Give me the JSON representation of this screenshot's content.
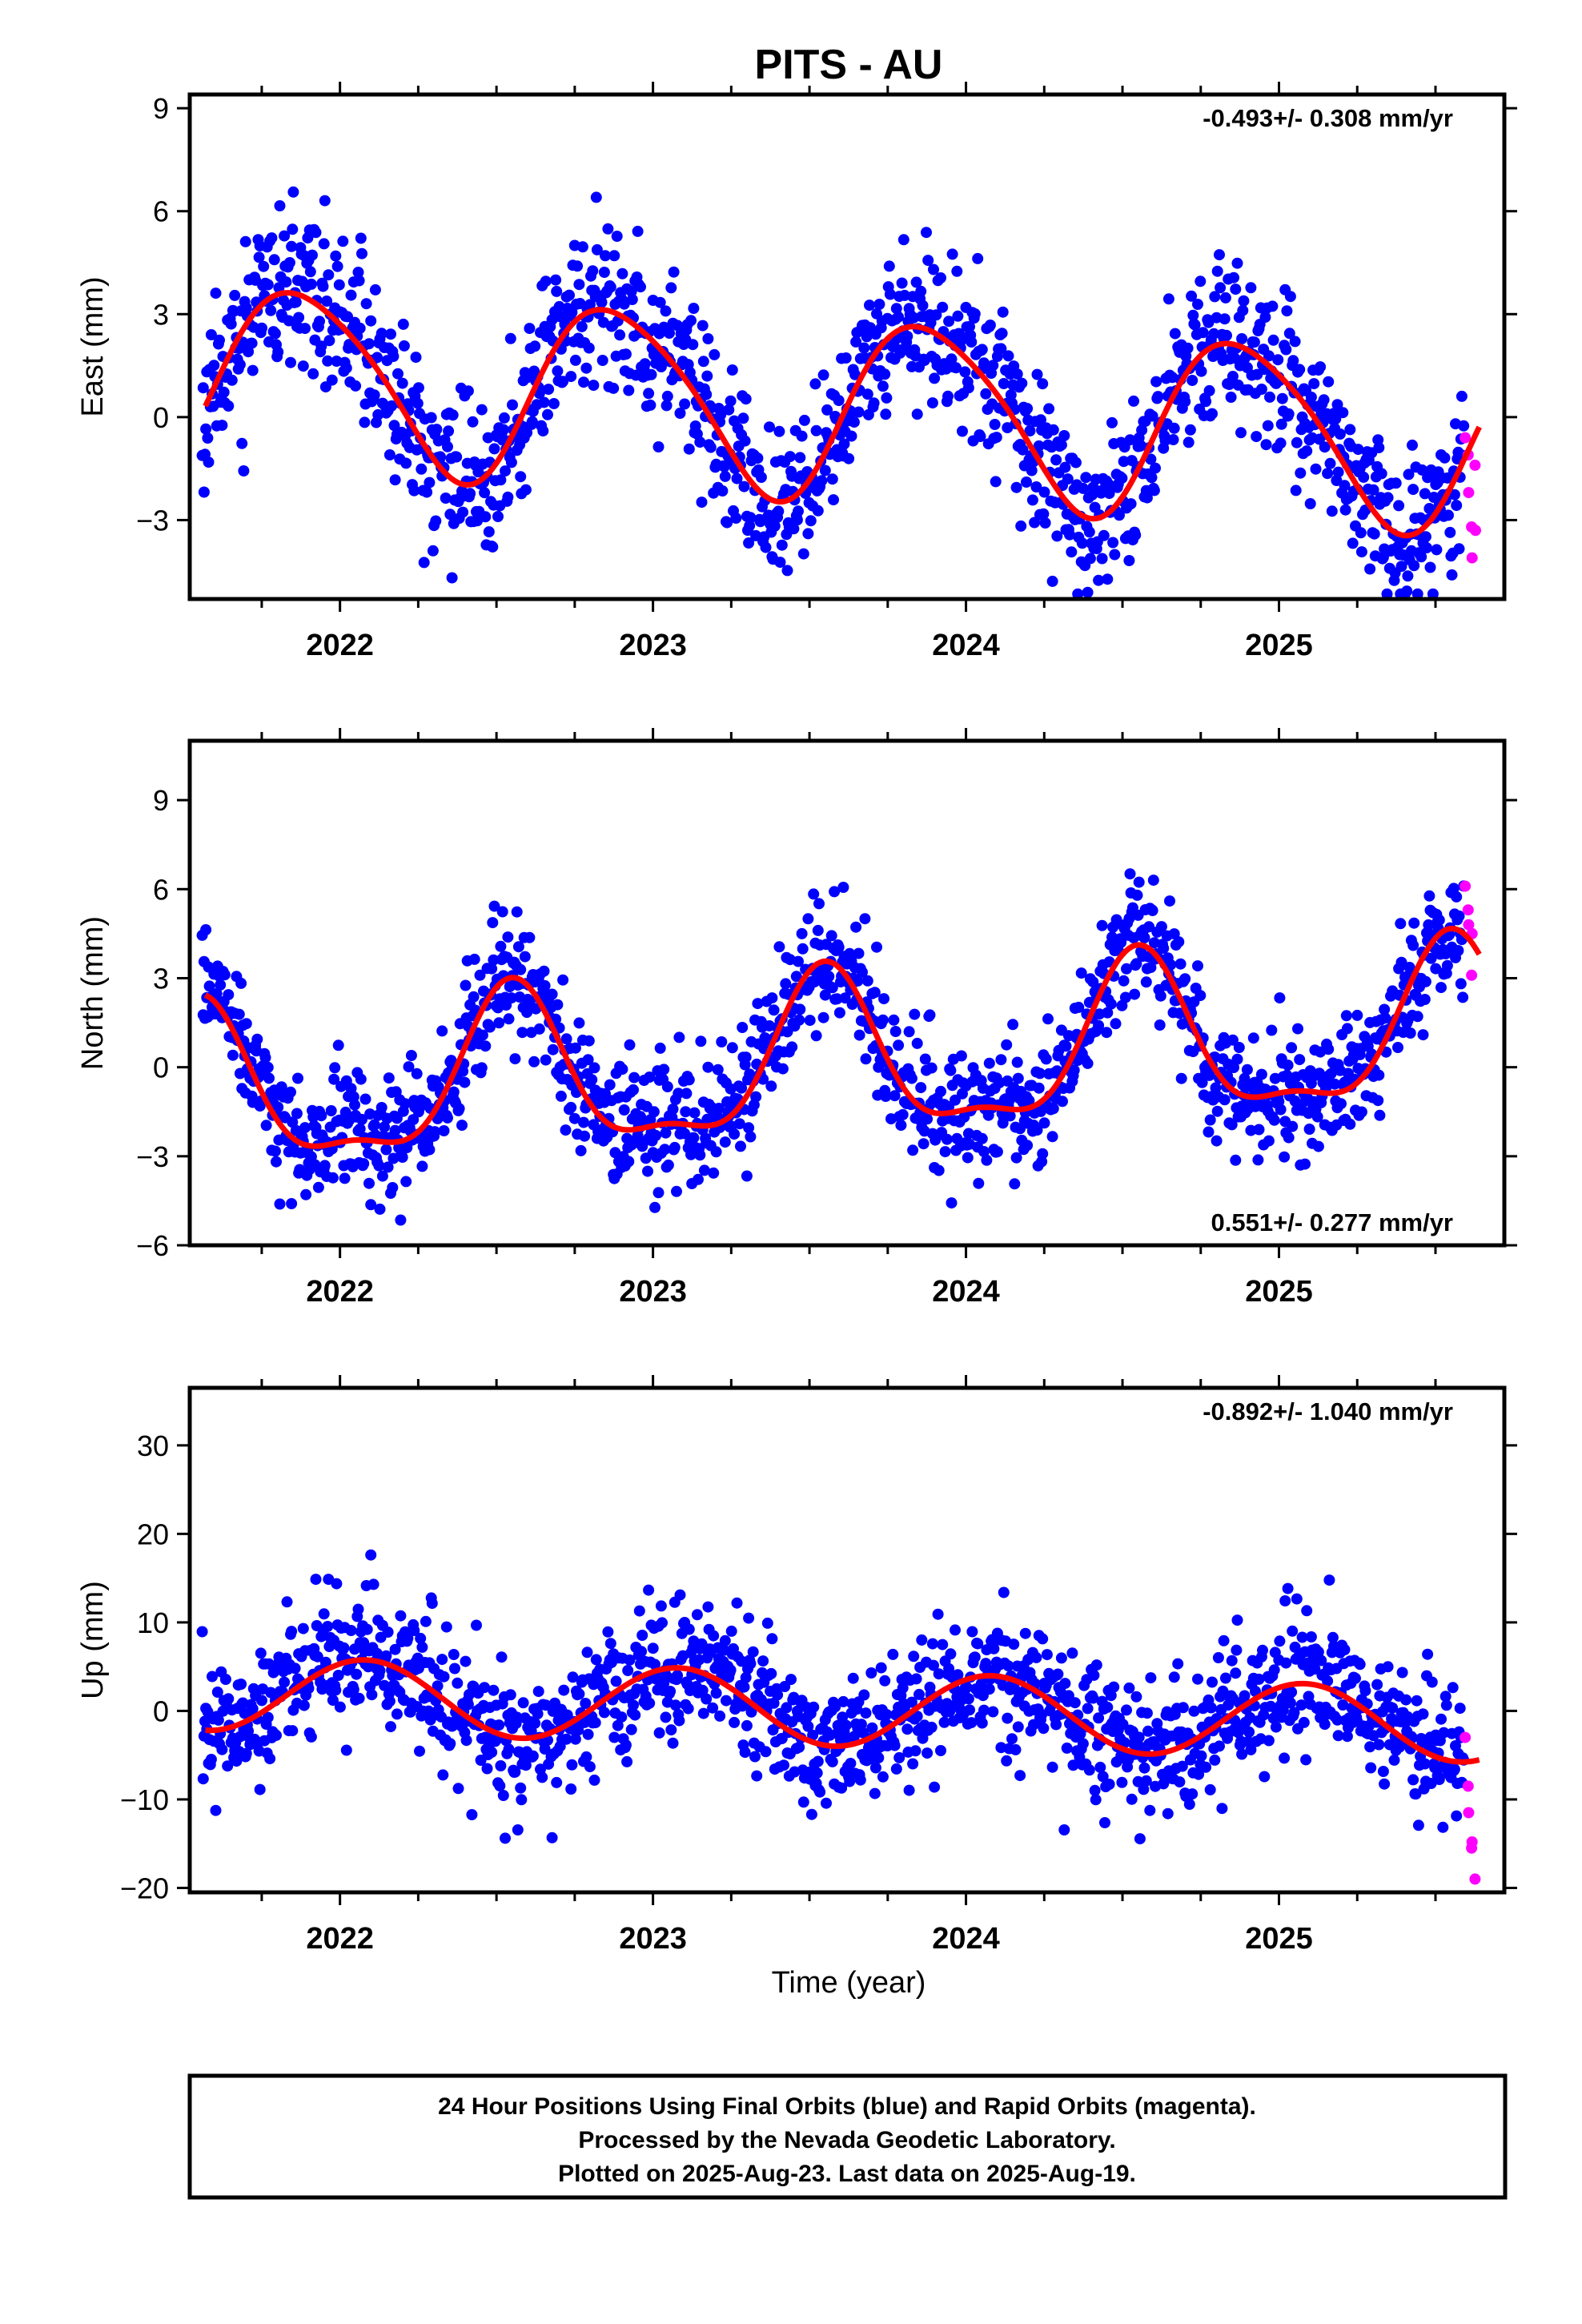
{
  "chart_data": {
    "title": "PITS - AU",
    "xlabel": "Time (year)",
    "x_tick_labels": [
      "2022",
      "2023",
      "2024",
      "2025"
    ],
    "colors": {
      "final": "#0000ff",
      "rapid": "#ff00ff",
      "fit": "#ff0000"
    },
    "panels": [
      {
        "type": "scatter",
        "ylabel": "East (mm)",
        "xlim": [
          2021.52,
          2025.72
        ],
        "ylim": [
          -5.3,
          9.4
        ],
        "yticks": [
          -3,
          0,
          3,
          6,
          9
        ],
        "rate_text": "-0.493+/- 0.308 mm/yr",
        "rate_position": "top-right",
        "seasonal": {
          "offset": 0.3,
          "trend": -0.493,
          "amp": 2.6,
          "peak": 0.88,
          "amp2": 0.35,
          "phase2": 0.2,
          "noise": 1.1,
          "seed": 11
        },
        "rapid_y": [
          -0.6,
          -1.1,
          -2.2,
          -3.2,
          -4.1,
          -1.4,
          -3.3
        ]
      },
      {
        "type": "scatter",
        "ylabel": "North (mm)",
        "xlim": [
          2021.52,
          2025.72
        ],
        "ylim": [
          -6.0,
          11.0
        ],
        "yticks": [
          -6,
          -3,
          0,
          3,
          6,
          9
        ],
        "rate_text": "0.551+/- 0.277 mm/yr",
        "rate_position": "bottom-right",
        "seasonal": {
          "offset": 0.1,
          "trend": 0.551,
          "amp": 2.6,
          "peak": 0.55,
          "amp2": 0.9,
          "phase2": 0.05,
          "noise": 1.0,
          "seed": 23
        },
        "rapid_y": [
          6.1,
          5.3,
          4.8,
          3.1,
          4.5
        ]
      },
      {
        "type": "scatter",
        "ylabel": "Up (mm)",
        "xlim": [
          2021.52,
          2025.72
        ],
        "ylim": [
          -20.5,
          36.5
        ],
        "yticks": [
          -20,
          -10,
          0,
          10,
          20,
          30
        ],
        "rate_text": "-0.892+/- 1.040 mm/yr",
        "rate_position": "top-right",
        "seasonal": {
          "offset": 0.2,
          "trend": -0.892,
          "amp": 4.2,
          "peak": 0.08,
          "amp2": 0.0,
          "phase2": 0.0,
          "noise": 3.6,
          "seed": 37
        },
        "rapid_y": [
          -3.0,
          -8.5,
          -11.5,
          -15.5,
          -14.8,
          -19.0
        ]
      }
    ]
  },
  "footer": {
    "line1": "24 Hour Positions Using Final Orbits (blue) and Rapid Orbits (magenta).",
    "line2": "Processed by the Nevada Geodetic Laboratory.",
    "line3": "Plotted on 2025-Aug-23. Last data on 2025-Aug-19."
  }
}
